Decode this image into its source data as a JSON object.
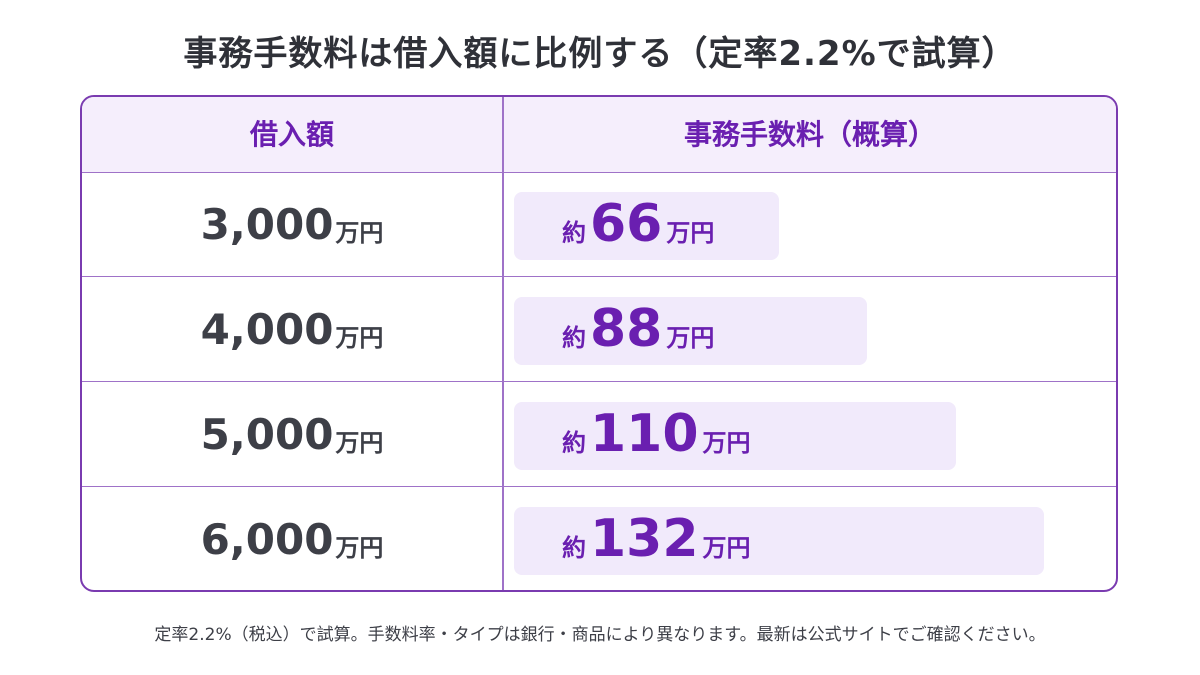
{
  "title": "事務手数料は借入額に比例する（定率2.2%で試算）",
  "header": {
    "col1": "借入額",
    "col2": "事務手数料（概算）"
  },
  "rows": [
    {
      "amount": "3,000",
      "amount_unit": "万円",
      "fee_prefix": "約",
      "fee": "66",
      "fee_unit": "万円"
    },
    {
      "amount": "4,000",
      "amount_unit": "万円",
      "fee_prefix": "約",
      "fee": "88",
      "fee_unit": "万円"
    },
    {
      "amount": "5,000",
      "amount_unit": "万円",
      "fee_prefix": "約",
      "fee": "110",
      "fee_unit": "万円"
    },
    {
      "amount": "6,000",
      "amount_unit": "万円",
      "fee_prefix": "約",
      "fee": "132",
      "fee_unit": "万円"
    }
  ],
  "chart_data": {
    "type": "bar",
    "title": "事務手数料は借入額に比例する（定率2.2%で試算）",
    "categories": [
      "3,000万円",
      "4,000万円",
      "5,000万円",
      "6,000万円"
    ],
    "values": [
      66,
      88,
      110,
      132
    ],
    "xlabel": "借入額",
    "ylabel": "事務手数料（概算）"
  },
  "note": "定率2.2%（税込）で試算。手数料率・タイプは銀行・商品により異なります。最新は公式サイトでご確認ください。",
  "colors": {
    "accent": "#6a1fb0",
    "border": "#7a3bb0",
    "header_bg": "#f5eefc",
    "bar_bg": "#f1eafb"
  }
}
